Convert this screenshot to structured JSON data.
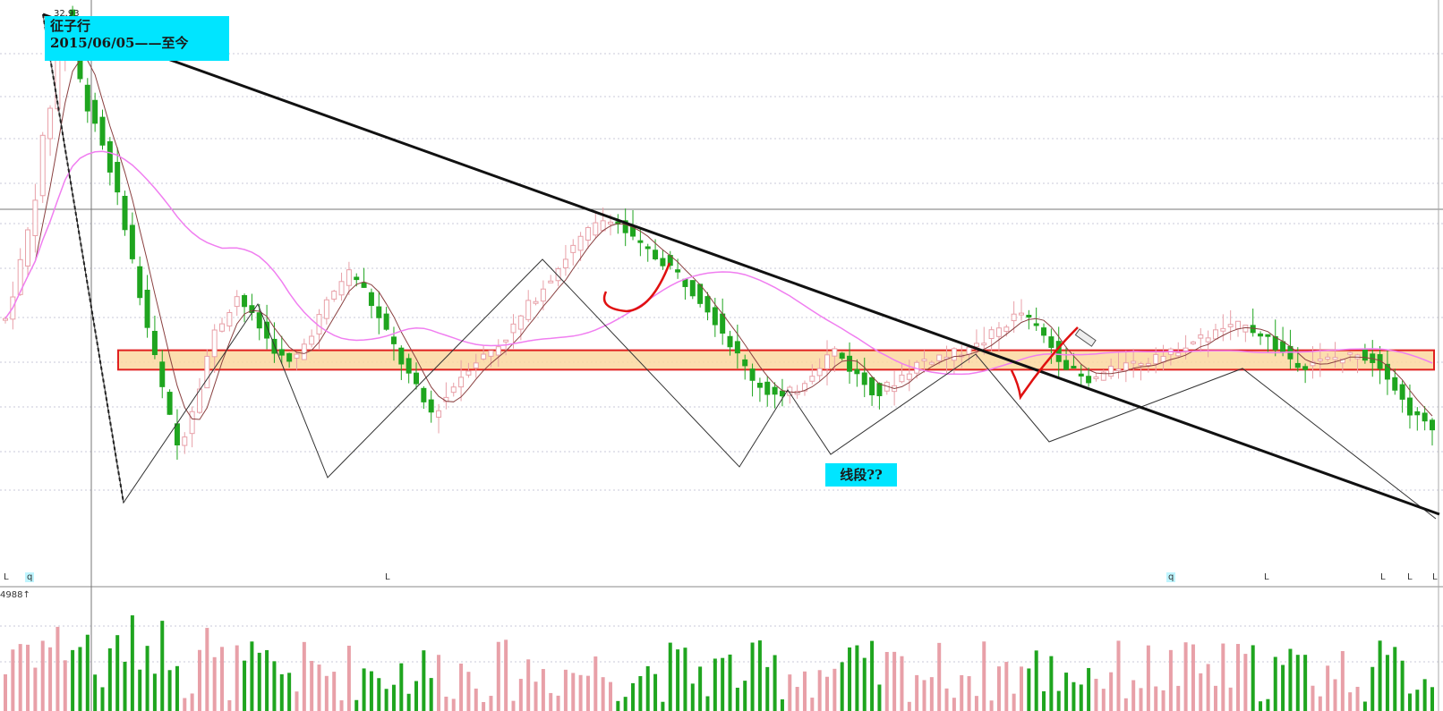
{
  "chart_data": {
    "type": "candlestick",
    "title": "",
    "annotations": {
      "period_line1": "征子行",
      "period_line2": "2015/06/05——至今",
      "peak_value": "32.93",
      "segment_question": "线段??",
      "volume_readout": "4988↑"
    },
    "time_marks": [
      {
        "label": "L",
        "q": false
      },
      {
        "label": "q",
        "q": true
      },
      {
        "label": "L",
        "q": false
      },
      {
        "label": "q",
        "q": true
      },
      {
        "label": "L",
        "q": false
      },
      {
        "label": "L",
        "q": false
      },
      {
        "label": "L",
        "q": false
      },
      {
        "label": "L",
        "q": false
      }
    ],
    "price_range": [
      6,
      33
    ],
    "zone": {
      "low": 14.6,
      "high": 15.6
    },
    "series": [
      {
        "name": "",
        "values": [
          17.2,
          18.6,
          20.1,
          21.7,
          23.6,
          26.4,
          28.2,
          30.9,
          32.9,
          31.4,
          29.5,
          28.2,
          27.4,
          26.2,
          25.0,
          23.5,
          22.1,
          20.2,
          18.4,
          16.8,
          15.2,
          13.6,
          12.1,
          10.7,
          11.4,
          12.6,
          13.9,
          15.3,
          16.5,
          17.1,
          17.8,
          18.4,
          17.9,
          17.3,
          16.8,
          16.2,
          15.7,
          15.2,
          14.9,
          15.3,
          15.9,
          16.6,
          17.3,
          18.0,
          18.6,
          19.2,
          19.6,
          19.3,
          18.7,
          18.0,
          17.2,
          16.5,
          15.8,
          15.0,
          14.3,
          13.6,
          12.9,
          12.4,
          12.7,
          13.2,
          13.8,
          14.3,
          14.8,
          15.1,
          15.3,
          15.6,
          15.9,
          16.3,
          16.8,
          17.3,
          17.9,
          18.4,
          18.9,
          19.4,
          19.9,
          20.4,
          20.9,
          21.3,
          21.7,
          22.0,
          22.3,
          22.5,
          22.1,
          21.7,
          21.3,
          21.0,
          20.7,
          20.4,
          20.2,
          19.9,
          19.5,
          19.1,
          18.7,
          18.3,
          17.8,
          17.2,
          16.6,
          16.0,
          15.3,
          14.7,
          14.2,
          13.8,
          13.5,
          13.3,
          13.1,
          13.4,
          13.7,
          14.1,
          14.5,
          14.9,
          15.3,
          15.6,
          15.2,
          14.7,
          14.3,
          13.9,
          13.6,
          13.4,
          13.7,
          14.0,
          14.3,
          14.6,
          14.9,
          15.1,
          15.2,
          15.3,
          15.3,
          15.4,
          15.5,
          15.6,
          15.8,
          16.1,
          16.4,
          16.7,
          17.0,
          17.3,
          17.5,
          17.2,
          16.8,
          16.3,
          15.8,
          15.3,
          14.9,
          14.5,
          14.2,
          14.1,
          14.2,
          14.4,
          14.5,
          14.7,
          14.8,
          14.9,
          15.0,
          15.1,
          15.2,
          15.3,
          15.4,
          15.6,
          15.8,
          16.0,
          16.2,
          16.4,
          16.5,
          16.6,
          16.7,
          16.8,
          16.8,
          16.7,
          16.5,
          16.2,
          15.8,
          15.5,
          15.2,
          15.0,
          14.9,
          14.9,
          15.0,
          15.1,
          15.2,
          15.2,
          15.3,
          15.4,
          15.3,
          15.1,
          14.9,
          14.4,
          13.7,
          13.0,
          12.5,
          12.1,
          11.8,
          11.5
        ]
      }
    ],
    "ma_short": "smoothed",
    "ma_long": "smoothed"
  },
  "colors": {
    "up": "#e8a0a8",
    "down": "#1fa51f",
    "ma_long": "#f07ef0",
    "zone_fill": "#fcd8a0",
    "zone_border": "#e02020",
    "label_bg": "#00e5ff",
    "trendline": "#111111",
    "pen_red": "#e01010"
  }
}
